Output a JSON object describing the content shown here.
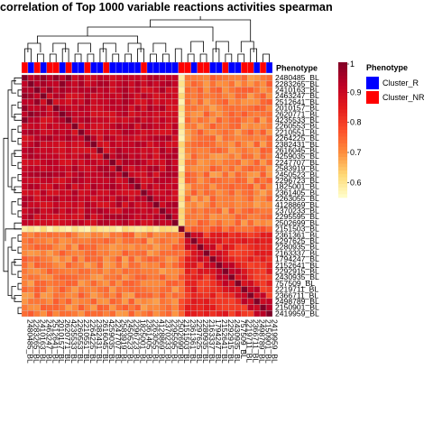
{
  "chart_data": {
    "type": "heatmap",
    "title": "correlation of Top 1000 variable reactions activities spearman",
    "row_labels": [
      "2480485_BL",
      "2283265_BL",
      "2410163_BL",
      "2463247_BL",
      "2512641_BL",
      "2010157_BL",
      "2620771_BL",
      "4235533_BL",
      "2260553_BL",
      "2210551_BL",
      "2264225_BL",
      "2382431_BL",
      "2616045_BL",
      "4259035_BL",
      "2247707_BL",
      "2583919_BL",
      "2450523_BL",
      "2296723_BL",
      "1825001_BL",
      "2361405_BL",
      "2263055_BL",
      "4128869_BL",
      "2370233_BL",
      "2295595_BL",
      "2502699_BL",
      "2151503_BL",
      "2361361_BL",
      "2297625_BL",
      "2280935_BL",
      "2163337_BL",
      "1794247_BL",
      "2152641_BL",
      "2292915_BL",
      "2430935_BL",
      "757509_BL",
      "2219711_BL",
      "2366711_BL",
      "2498789_BL",
      "2150901_BL",
      "2419959_BL"
    ],
    "col_labels": [
      "2480485_BL",
      "2283265_BL",
      "2410163_BL",
      "2463247_BL",
      "2512641_BL",
      "2010157_BL",
      "2620771_BL",
      "4235533_BL",
      "2260553_BL",
      "2210551_BL",
      "2264225_BL",
      "2382431_BL",
      "2616045_BL",
      "4259035_BL",
      "2247707_BL",
      "2583919_BL",
      "2450523_BL",
      "2296723_BL",
      "1825001_BL",
      "2361405_BL",
      "2263055_BL",
      "4128869_BL",
      "2370233_BL",
      "2295595_BL",
      "2502699_BL",
      "2151503_BL",
      "2361361_BL",
      "2297625_BL",
      "2280935_BL",
      "2163337_BL",
      "1794247_BL",
      "2152641_BL",
      "2292915_BL",
      "2430935_BL",
      "757509_BL",
      "2219711_BL",
      "2366711_BL",
      "2498789_BL",
      "2150901_BL",
      "2419959_BL"
    ],
    "phenotype_title": "Phenotype",
    "phenotype": [
      "NR",
      "R",
      "NR",
      "R",
      "NR",
      "NR",
      "R",
      "NR",
      "R",
      "R",
      "NR",
      "R",
      "R",
      "NR",
      "R",
      "R",
      "R",
      "R",
      "R",
      "NR",
      "R",
      "R",
      "R",
      "R",
      "R",
      "NR",
      "NR",
      "R",
      "NR",
      "NR",
      "R",
      "R",
      "NR",
      "R",
      "R",
      "NR",
      "NR",
      "R",
      "NR",
      "R"
    ],
    "legend": {
      "colorbar_ticks": [
        1,
        0.9,
        0.8,
        0.7,
        0.6
      ],
      "phenotype_title": "Phenotype",
      "phenotype_items": [
        {
          "label": "Cluster_R",
          "color": "#0000ff"
        },
        {
          "label": "Cluster_NR",
          "color": "#ff0000"
        }
      ]
    },
    "value_range": [
      0.55,
      1
    ],
    "colorscale": [
      "#ffffcc",
      "#fed976",
      "#fd8d3c",
      "#fc4e2a",
      "#e31a1c",
      "#bd0026",
      "#800026"
    ],
    "blocks": {
      "cluster_a_end": 25,
      "outlier_index": 25,
      "within_a": 0.91,
      "within_b": 0.83,
      "between_ab": 0.72,
      "outlier_to_a": 0.6,
      "outlier_to_b": 0.75
    }
  }
}
